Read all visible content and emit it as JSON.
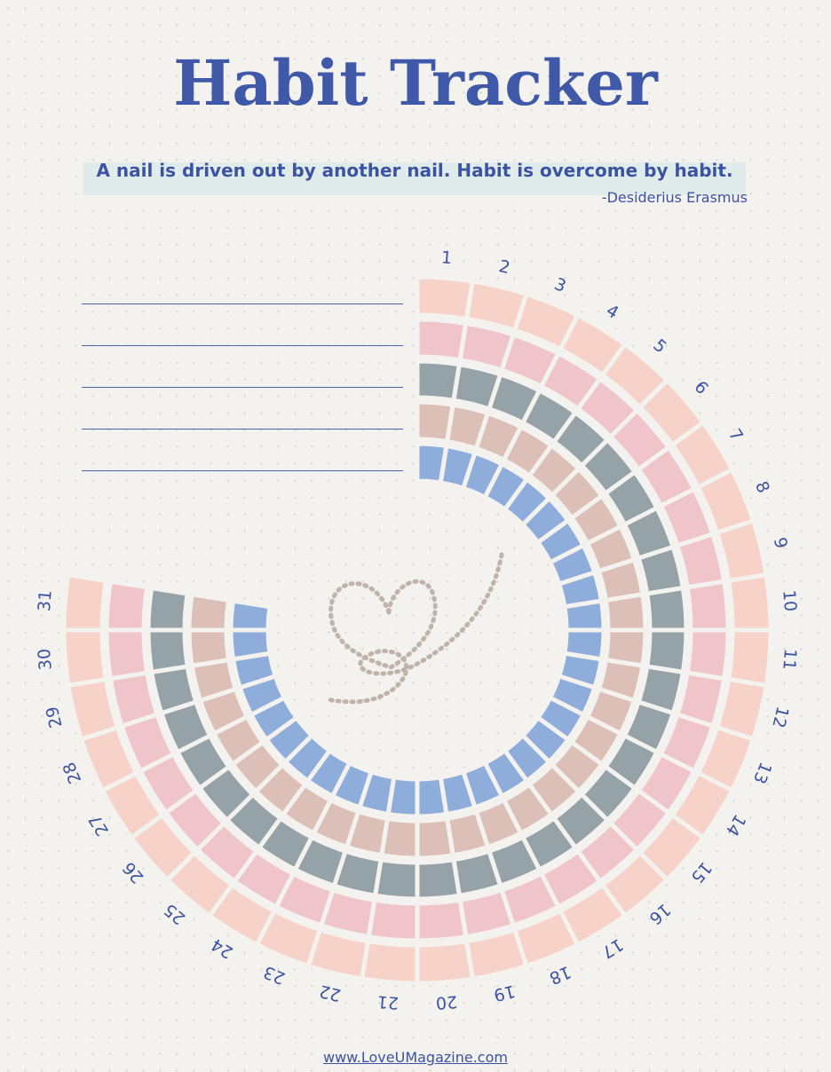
{
  "header": {
    "title": "Habit Tracker",
    "quote": "A nail is driven out by another nail. Habit is overcome by habit.",
    "author": "-Desiderius Erasmus"
  },
  "tracker": {
    "days": [
      "1",
      "2",
      "3",
      "4",
      "5",
      "6",
      "7",
      "8",
      "9",
      "10",
      "11",
      "12",
      "13",
      "14",
      "15",
      "16",
      "17",
      "18",
      "19",
      "20",
      "21",
      "22",
      "23",
      "24",
      "25",
      "26",
      "27",
      "28",
      "29",
      "30",
      "31"
    ],
    "ring_colors": [
      "#f6d2c8",
      "#efc5cb",
      "#95a3a9",
      "#dcc0b8",
      "#8fadda"
    ]
  },
  "footer": {
    "link": "www.LoveUMagazine.com"
  }
}
